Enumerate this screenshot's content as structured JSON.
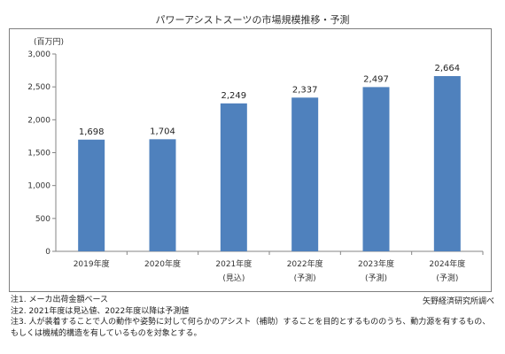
{
  "chart_data": {
    "type": "bar",
    "title": "パワーアシストスーツの市場規模推移・予測",
    "unit_label": "(百万円)",
    "categories": [
      "2019年度",
      "2020年度",
      "2021年度",
      "2022年度",
      "2023年度",
      "2024年度"
    ],
    "category_sublabels": [
      "",
      "",
      "(見込)",
      "(予測)",
      "(予測)",
      "(予測)"
    ],
    "values": [
      1698,
      1704,
      2249,
      2337,
      2497,
      2664
    ],
    "value_labels": [
      "1,698",
      "1,704",
      "2,249",
      "2,337",
      "2,497",
      "2,664"
    ],
    "ylim": [
      0,
      3000
    ],
    "y_ticks": [
      0,
      500,
      1000,
      1500,
      2000,
      2500,
      3000
    ],
    "y_tick_labels": [
      "0",
      "500",
      "1,000",
      "1,500",
      "2,000",
      "2,500",
      "3,000"
    ],
    "grid": false,
    "bar_color": "#4f81bd"
  },
  "notes": [
    "注1.  メーカ出荷金額ベース",
    "注2.  2021年度は見込値、2022年度以降は予測値",
    "注3.  人が装着することで人の動作や姿勢に対して何らかのアシスト（補助）することを目的とするもののうち、動力源を有するもの、",
    "        もしくは機械的構造を有しているものを対象とする。"
  ],
  "source": "矢野経済研究所調べ"
}
